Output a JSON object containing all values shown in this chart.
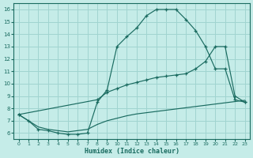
{
  "xlabel": "Humidex (Indice chaleur)",
  "bg_color": "#c5ece8",
  "grid_color": "#a0d4d0",
  "line_color": "#1a6b60",
  "xlim": [
    -0.5,
    23.5
  ],
  "ylim": [
    5.5,
    16.5
  ],
  "xticks": [
    0,
    1,
    2,
    3,
    4,
    5,
    6,
    7,
    8,
    9,
    10,
    11,
    12,
    13,
    14,
    15,
    16,
    17,
    18,
    19,
    20,
    21,
    22,
    23
  ],
  "yticks": [
    6,
    7,
    8,
    9,
    10,
    11,
    12,
    13,
    14,
    15,
    16
  ],
  "line1_x": [
    0,
    1,
    2,
    3,
    4,
    5,
    6,
    7,
    8,
    9,
    10,
    11,
    12,
    13,
    14,
    15,
    16,
    17,
    18,
    19,
    20,
    21,
    22,
    23
  ],
  "line1_y": [
    7.5,
    7.0,
    6.5,
    6.3,
    6.2,
    6.1,
    6.2,
    6.3,
    6.7,
    7.0,
    7.2,
    7.4,
    7.55,
    7.65,
    7.75,
    7.85,
    7.95,
    8.05,
    8.15,
    8.25,
    8.35,
    8.45,
    8.55,
    8.65
  ],
  "line2_x": [
    0,
    1,
    2,
    3,
    4,
    5,
    6,
    7,
    8,
    9,
    10,
    11,
    12,
    13,
    14,
    15,
    16,
    17,
    18,
    19,
    20,
    21,
    22,
    23
  ],
  "line2_y": [
    7.5,
    7.0,
    6.3,
    6.2,
    6.0,
    5.9,
    5.9,
    6.0,
    8.5,
    9.5,
    13.0,
    13.8,
    14.5,
    15.5,
    16.0,
    16.0,
    16.0,
    15.2,
    14.3,
    13.0,
    11.2,
    11.2,
    8.7,
    8.5
  ],
  "line3_x": [
    0,
    8,
    9,
    10,
    11,
    12,
    13,
    14,
    15,
    16,
    17,
    18,
    19,
    20,
    21,
    22,
    23
  ],
  "line3_y": [
    7.5,
    8.7,
    9.3,
    9.6,
    9.9,
    10.1,
    10.3,
    10.5,
    10.6,
    10.7,
    10.8,
    11.2,
    11.8,
    13.0,
    13.0,
    9.0,
    8.5
  ]
}
